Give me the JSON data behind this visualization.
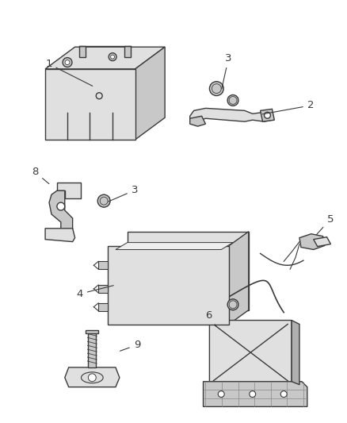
{
  "bg_color": "#ffffff",
  "line_color": "#3a3a3a",
  "label_color": "#222222",
  "fig_width": 4.39,
  "fig_height": 5.33,
  "dpi": 100,
  "lw": 1.0,
  "gray_light": "#e0e0e0",
  "gray_mid": "#c8c8c8",
  "gray_dark": "#b0b0b0"
}
